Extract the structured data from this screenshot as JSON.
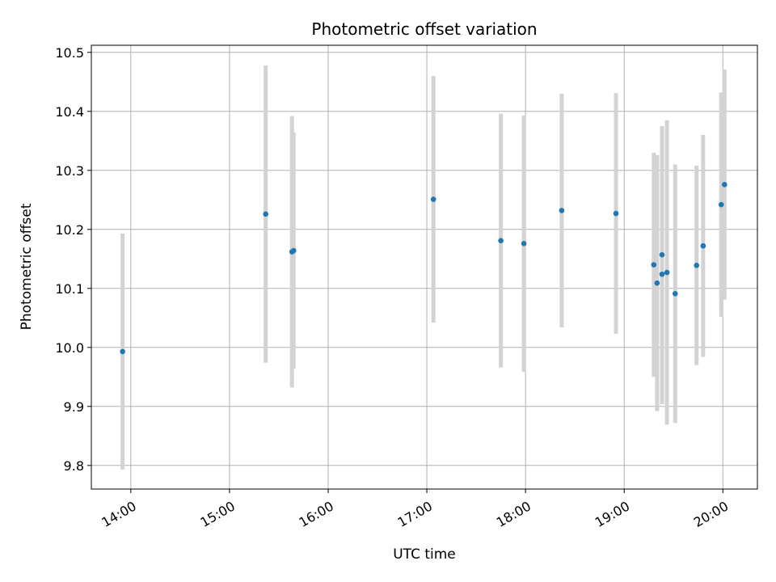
{
  "chart_data": {
    "type": "scatter",
    "title": "Photometric offset variation",
    "xlabel": "UTC time",
    "ylabel": "Photometric offset",
    "x_ticks": [
      "14:00",
      "15:00",
      "16:00",
      "17:00",
      "18:00",
      "19:00",
      "20:00"
    ],
    "y_ticks": [
      "9.8",
      "9.9",
      "10.0",
      "10.1",
      "10.2",
      "10.3",
      "10.4",
      "10.5"
    ],
    "xlim": [
      "13:36",
      "20:21"
    ],
    "ylim": [
      9.76,
      10.512
    ],
    "grid": true,
    "colors": {
      "point": "#1f77b4",
      "errorbar": "#d3d3d3",
      "grid": "#b0b0b0"
    },
    "points": [
      {
        "x": "13:55",
        "y": 9.993,
        "yerr": 0.2
      },
      {
        "x": "15:22",
        "y": 10.226,
        "yerr": 0.252
      },
      {
        "x": "15:38",
        "y": 10.162,
        "yerr": 0.23
      },
      {
        "x": "15:39",
        "y": 10.164,
        "yerr": 0.2
      },
      {
        "x": "17:04",
        "y": 10.251,
        "yerr": 0.209
      },
      {
        "x": "17:45",
        "y": 10.181,
        "yerr": 0.215
      },
      {
        "x": "17:59",
        "y": 10.176,
        "yerr": 0.217
      },
      {
        "x": "18:22",
        "y": 10.232,
        "yerr": 0.198
      },
      {
        "x": "18:55",
        "y": 10.227,
        "yerr": 0.204
      },
      {
        "x": "19:18",
        "y": 10.14,
        "yerr": 0.19
      },
      {
        "x": "19:20",
        "y": 10.109,
        "yerr": 0.217
      },
      {
        "x": "19:23",
        "y": 10.157,
        "yerr": 0.218
      },
      {
        "x": "19:23",
        "y": 10.124,
        "yerr": 0.22
      },
      {
        "x": "19:26",
        "y": 10.127,
        "yerr": 0.258
      },
      {
        "x": "19:31",
        "y": 10.091,
        "yerr": 0.219
      },
      {
        "x": "19:44",
        "y": 10.139,
        "yerr": 0.169
      },
      {
        "x": "19:48",
        "y": 10.172,
        "yerr": 0.188
      },
      {
        "x": "19:59",
        "y": 10.242,
        "yerr": 0.19
      },
      {
        "x": "20:01",
        "y": 10.276,
        "yerr": 0.195
      }
    ]
  }
}
